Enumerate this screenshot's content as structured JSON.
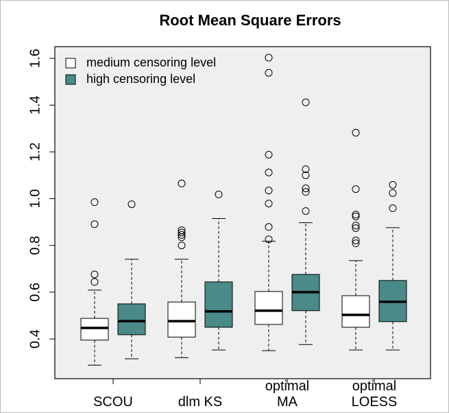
{
  "chart_data": {
    "type": "boxplot",
    "title": "Root Mean Square Errors",
    "categories": [
      "SCOU",
      "dlm KS",
      "optimal\nMA",
      "optimal\nLOESS"
    ],
    "ylim": [
      0.23,
      1.65
    ],
    "yticks": [
      {
        "value": 0.4,
        "label": "0.4"
      },
      {
        "value": 0.6,
        "label": "0.6"
      },
      {
        "value": 0.8,
        "label": "0.8"
      },
      {
        "value": 1.0,
        "label": "1.0"
      },
      {
        "value": 1.2,
        "label": "1.2"
      },
      {
        "value": 1.4,
        "label": "1.4"
      },
      {
        "value": 1.6,
        "label": "1.6"
      }
    ],
    "legend": "top-left",
    "series": [
      {
        "name": "medium censoring level",
        "color": "#ffffff",
        "boxes": [
          {
            "low": 0.288,
            "q1": 0.395,
            "median": 0.447,
            "q3": 0.488,
            "high": 0.609,
            "outliers": [
              0.985,
              0.891,
              0.676,
              0.644
            ]
          },
          {
            "low": 0.32,
            "q1": 0.408,
            "median": 0.476,
            "q3": 0.558,
            "high": 0.741,
            "outliers": [
              1.065,
              0.865,
              0.855,
              0.845,
              0.835,
              0.8
            ]
          },
          {
            "low": 0.35,
            "q1": 0.462,
            "median": 0.521,
            "q3": 0.603,
            "high": 0.818,
            "outliers": [
              1.603,
              1.538,
              1.188,
              1.112,
              1.035,
              0.979,
              0.879,
              0.826
            ]
          },
          {
            "low": 0.353,
            "q1": 0.45,
            "median": 0.503,
            "q3": 0.585,
            "high": 0.735,
            "outliers": [
              1.282,
              1.041,
              0.932,
              0.924,
              0.885,
              0.874,
              0.821,
              0.809
            ]
          }
        ]
      },
      {
        "name": "high censoring level",
        "color": "#4a8a88",
        "boxes": [
          {
            "low": 0.315,
            "q1": 0.418,
            "median": 0.476,
            "q3": 0.55,
            "high": 0.741,
            "outliers": [
              0.976
            ]
          },
          {
            "low": 0.353,
            "q1": 0.45,
            "median": 0.518,
            "q3": 0.644,
            "high": 0.915,
            "outliers": [
              1.018
            ]
          },
          {
            "low": 0.376,
            "q1": 0.521,
            "median": 0.6,
            "q3": 0.676,
            "high": 0.897,
            "outliers": [
              1.412,
              1.126,
              1.1,
              1.044,
              1.029,
              0.947
            ]
          },
          {
            "low": 0.353,
            "q1": 0.474,
            "median": 0.559,
            "q3": 0.65,
            "high": 0.876,
            "outliers": [
              1.059,
              1.024,
              0.959
            ]
          }
        ]
      }
    ]
  }
}
